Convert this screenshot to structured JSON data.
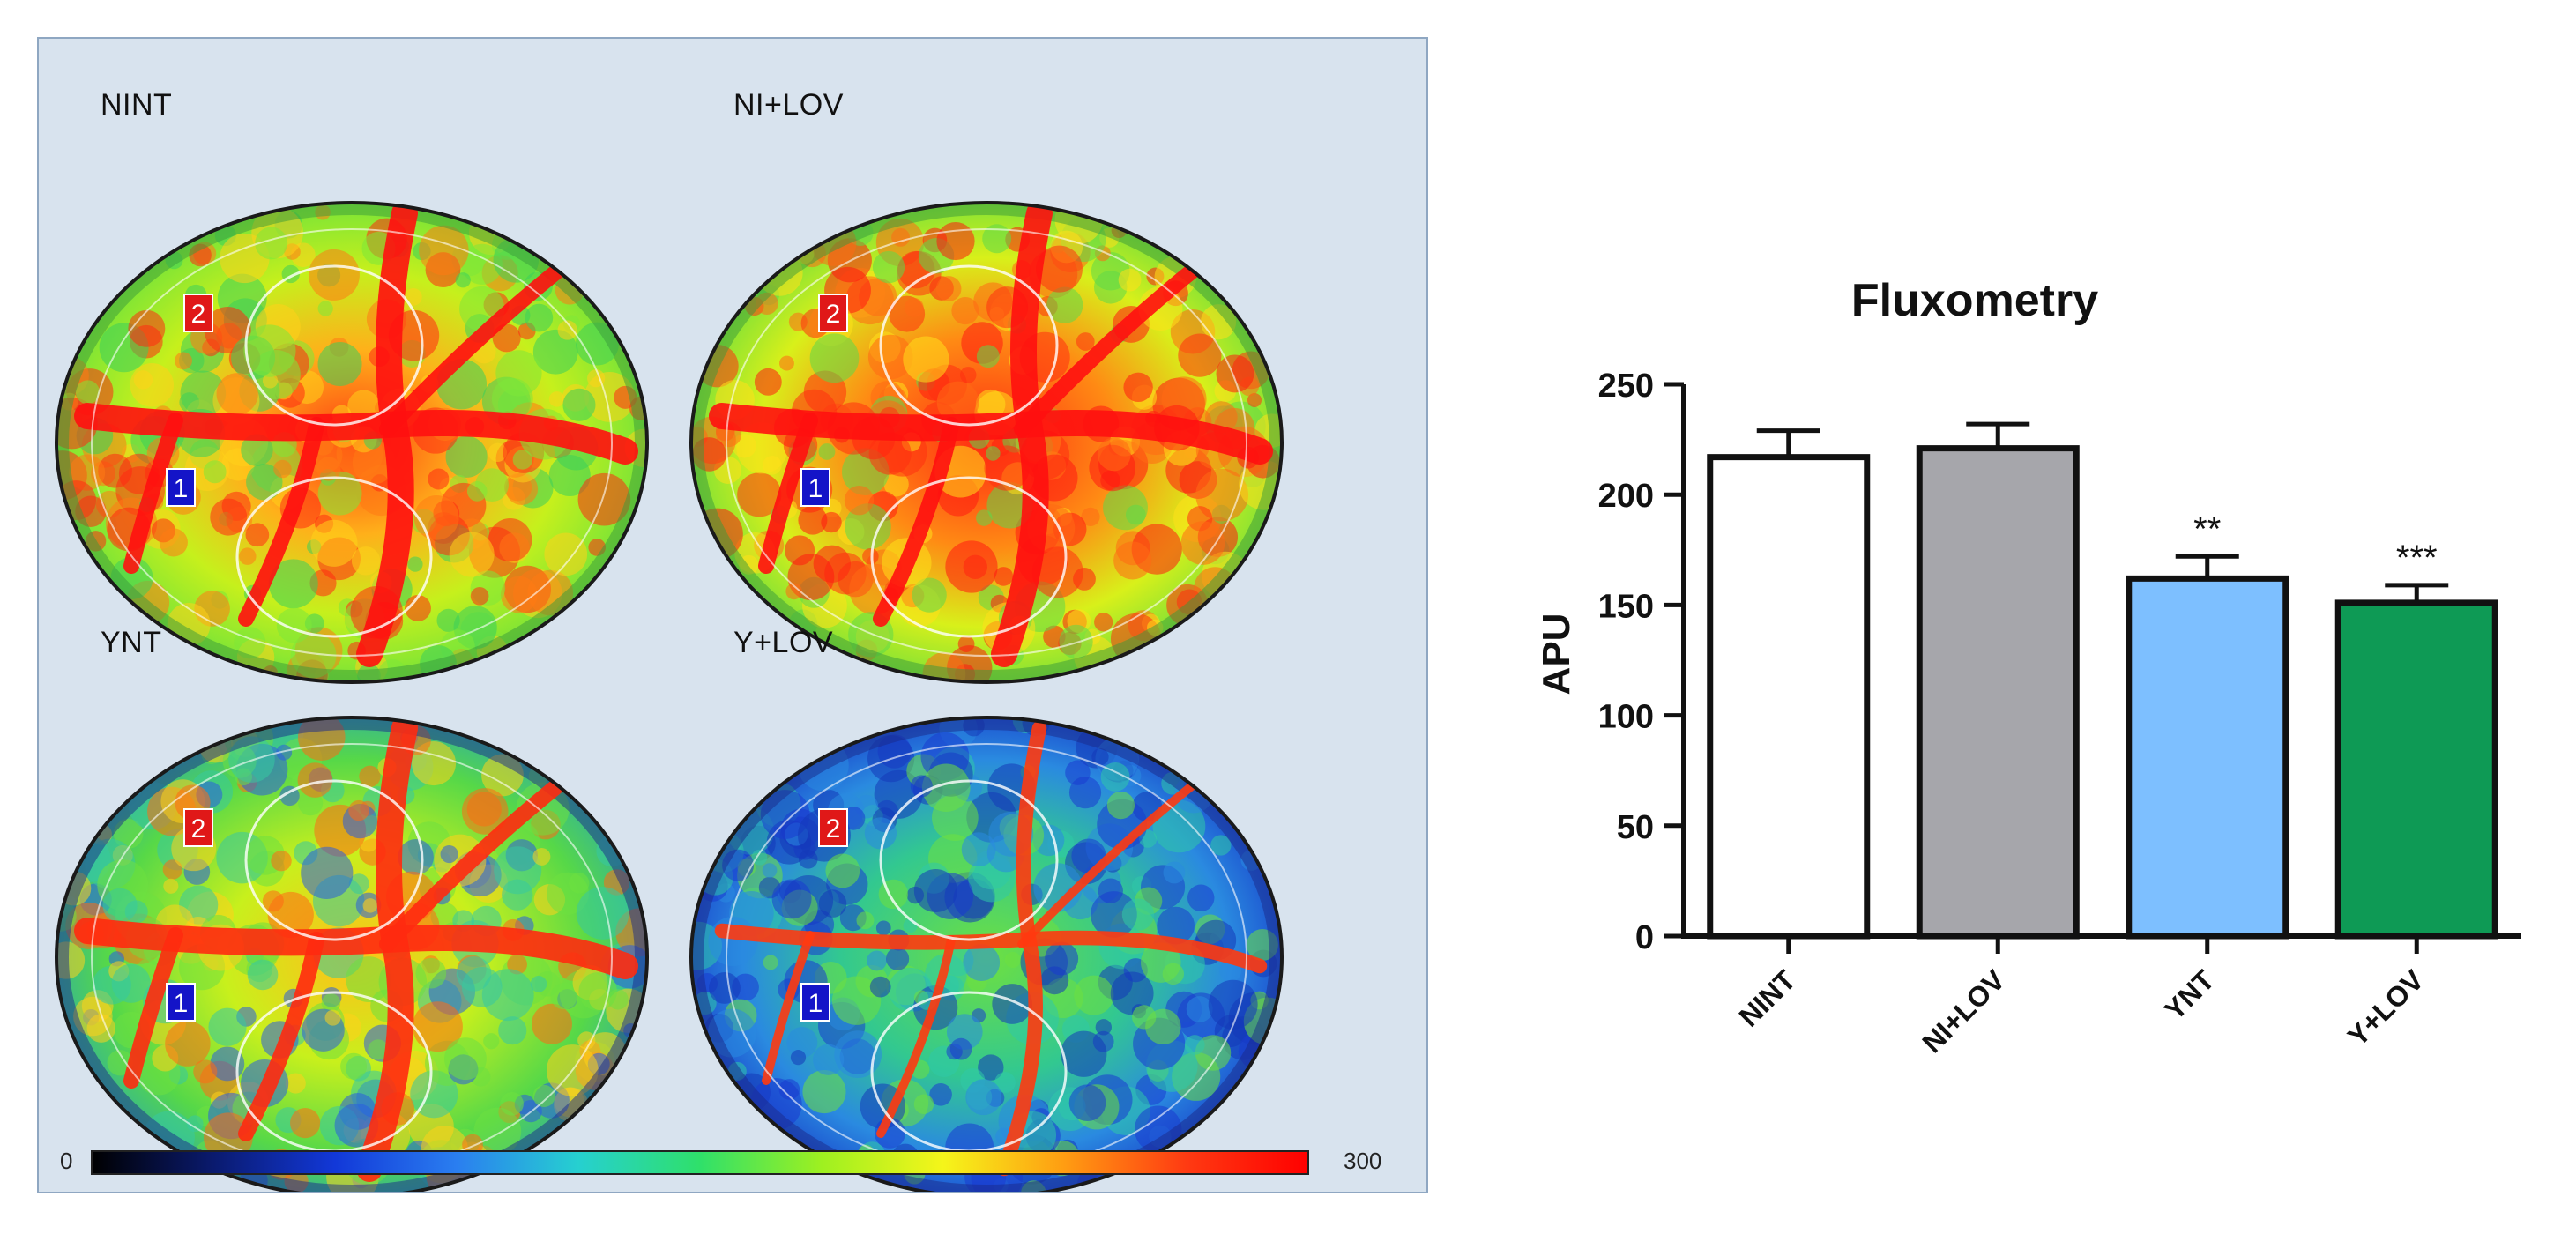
{
  "scan_panel": {
    "panels": [
      {
        "label": "NINT",
        "variant": "nint",
        "roi_markers": [
          "2",
          "1"
        ]
      },
      {
        "label": "NI+LOV",
        "variant": "nilov",
        "roi_markers": [
          "2",
          "1"
        ]
      },
      {
        "label": "YNT",
        "variant": "ynt",
        "roi_markers": [
          "2",
          "1"
        ]
      },
      {
        "label": "Y+LOV",
        "variant": "ylov",
        "roi_markers": [
          "2",
          "1"
        ]
      }
    ],
    "colorbar": {
      "min_label": "0",
      "max_label": "300",
      "stops": [
        "#000000",
        "#0a1a6e",
        "#1238d8",
        "#2a7ef0",
        "#26d0d0",
        "#2fe06a",
        "#9ef020",
        "#f5f51a",
        "#ff9c12",
        "#ff3a12",
        "#ff0000"
      ]
    },
    "colors": {
      "background": "#d8e3ee",
      "border": "#8fa7c2",
      "marker_1": "#1414c8",
      "marker_2": "#e01818"
    }
  },
  "chart_data": {
    "type": "bar",
    "title": "Fluxometry",
    "xlabel": "",
    "ylabel": "APU",
    "categories": [
      "NINT",
      "NI+LOV",
      "YNT",
      "Y+LOV"
    ],
    "values": [
      217,
      221,
      162,
      151
    ],
    "errors": [
      12,
      11,
      10,
      8
    ],
    "significance": [
      "",
      "",
      "**",
      "***"
    ],
    "ylim": [
      0,
      250
    ],
    "yticks": [
      0,
      50,
      100,
      150,
      200,
      250
    ],
    "bar_colors": [
      "#ffffff",
      "#a6a6ab",
      "#7dbfff",
      "#0e9a55"
    ],
    "grid": false,
    "legend": "none"
  }
}
